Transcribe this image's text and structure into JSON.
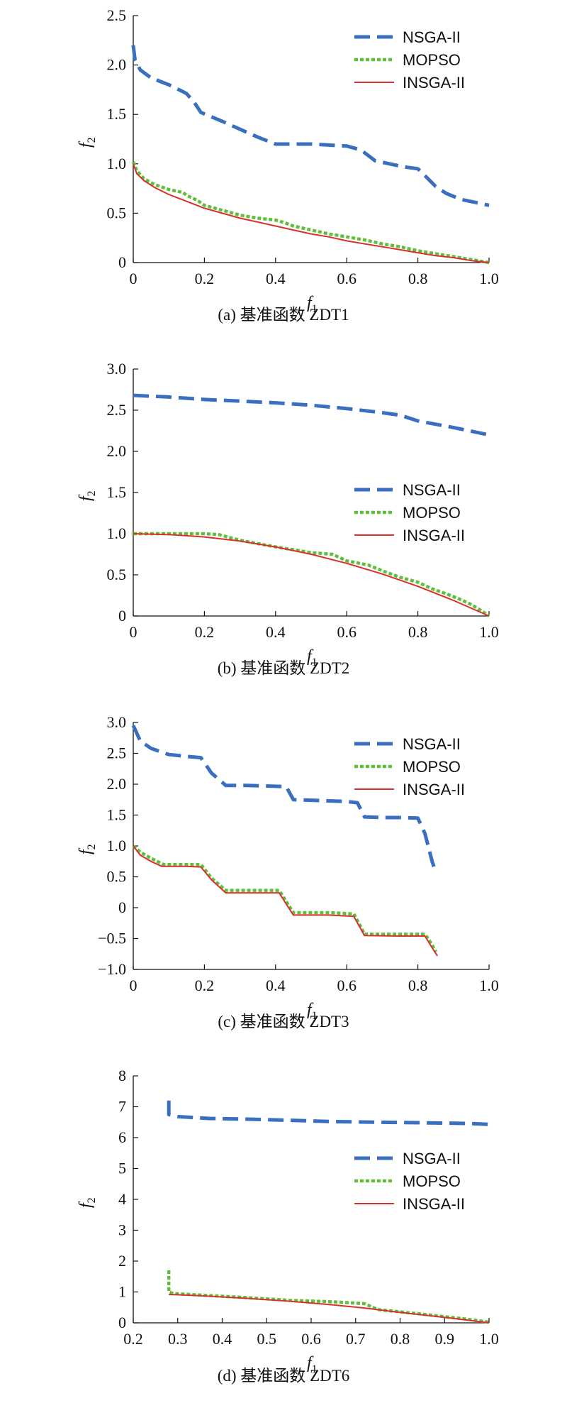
{
  "chart_data": [
    {
      "type": "line",
      "caption": "(a) 基准函数 ZDT1",
      "xlabel": "f1",
      "ylabel": "f2",
      "xlim": [
        0,
        1
      ],
      "ylim": [
        0,
        2.5
      ],
      "xticks": [
        0,
        0.2,
        0.4,
        0.6,
        0.8,
        1.0
      ],
      "xtick_labels": [
        "0",
        "0.2",
        "0.4",
        "0.6",
        "0.8",
        "1.0"
      ],
      "yticks": [
        0,
        0.5,
        1.0,
        1.5,
        2.0,
        2.5
      ],
      "ytick_labels": [
        "0",
        "0.5",
        "1.0",
        "1.5",
        "2.0",
        "2.5"
      ],
      "legend": "upper-right",
      "series": [
        {
          "name": "NSGA-II",
          "x": [
            0,
            0.005,
            0.02,
            0.05,
            0.1,
            0.14,
            0.15,
            0.17,
            0.19,
            0.25,
            0.3,
            0.35,
            0.4,
            0.45,
            0.5,
            0.55,
            0.6,
            0.64,
            0.68,
            0.72,
            0.76,
            0.8,
            0.82,
            0.85,
            0.88,
            0.92,
            0.96,
            1.0
          ],
          "y": [
            2.2,
            2.05,
            1.95,
            1.87,
            1.8,
            1.73,
            1.71,
            1.63,
            1.52,
            1.43,
            1.35,
            1.27,
            1.2,
            1.2,
            1.2,
            1.19,
            1.18,
            1.14,
            1.03,
            1.0,
            0.97,
            0.95,
            0.88,
            0.77,
            0.7,
            0.64,
            0.61,
            0.58
          ]
        },
        {
          "name": "MOPSO",
          "x": [
            0,
            0.01,
            0.03,
            0.06,
            0.1,
            0.14,
            0.15,
            0.18,
            0.2,
            0.26,
            0.3,
            0.35,
            0.4,
            0.42,
            0.45,
            0.5,
            0.55,
            0.6,
            0.65,
            0.7,
            0.75,
            0.8,
            0.85,
            0.9,
            0.95,
            1.0
          ],
          "y": [
            1.02,
            0.93,
            0.85,
            0.79,
            0.74,
            0.71,
            0.68,
            0.63,
            0.58,
            0.52,
            0.48,
            0.45,
            0.43,
            0.41,
            0.37,
            0.33,
            0.29,
            0.26,
            0.23,
            0.19,
            0.16,
            0.12,
            0.09,
            0.06,
            0.03,
            0.0
          ]
        },
        {
          "name": "INSGA-II",
          "x": [
            0,
            0.01,
            0.03,
            0.06,
            0.1,
            0.15,
            0.2,
            0.25,
            0.3,
            0.35,
            0.4,
            0.45,
            0.5,
            0.55,
            0.6,
            0.65,
            0.7,
            0.75,
            0.8,
            0.85,
            0.9,
            0.95,
            1.0
          ],
          "y": [
            1.0,
            0.9,
            0.83,
            0.76,
            0.69,
            0.62,
            0.55,
            0.5,
            0.45,
            0.41,
            0.37,
            0.33,
            0.29,
            0.26,
            0.22,
            0.19,
            0.16,
            0.13,
            0.1,
            0.07,
            0.05,
            0.02,
            0.0
          ]
        }
      ]
    },
    {
      "type": "line",
      "caption": "(b) 基准函数 ZDT2",
      "xlabel": "f1",
      "ylabel": "f2",
      "xlim": [
        0,
        1
      ],
      "ylim": [
        0,
        3.0
      ],
      "xticks": [
        0,
        0.2,
        0.4,
        0.6,
        0.8,
        1.0
      ],
      "xtick_labels": [
        "0",
        "0.2",
        "0.4",
        "0.6",
        "0.8",
        "1.0"
      ],
      "yticks": [
        0,
        0.5,
        1.0,
        1.5,
        2.0,
        2.5,
        3.0
      ],
      "ytick_labels": [
        "0",
        "0.5",
        "1.0",
        "1.5",
        "2.0",
        "2.5",
        "3.0"
      ],
      "legend": "right",
      "series": [
        {
          "name": "NSGA-II",
          "x": [
            0,
            0.1,
            0.2,
            0.3,
            0.4,
            0.5,
            0.6,
            0.7,
            0.75,
            0.8,
            0.9,
            1.0
          ],
          "y": [
            2.68,
            2.66,
            2.63,
            2.61,
            2.59,
            2.56,
            2.52,
            2.47,
            2.44,
            2.37,
            2.29,
            2.2
          ]
        },
        {
          "name": "MOPSO",
          "x": [
            0,
            0.1,
            0.2,
            0.24,
            0.3,
            0.4,
            0.5,
            0.56,
            0.6,
            0.66,
            0.7,
            0.75,
            0.8,
            0.84,
            0.88,
            0.92,
            0.95,
            0.98,
            1.0
          ],
          "y": [
            1.0,
            1.0,
            1.0,
            0.99,
            0.92,
            0.84,
            0.77,
            0.75,
            0.67,
            0.62,
            0.55,
            0.47,
            0.41,
            0.33,
            0.27,
            0.2,
            0.14,
            0.06,
            0.0
          ]
        },
        {
          "name": "INSGA-II",
          "x": [
            0,
            0.1,
            0.2,
            0.3,
            0.4,
            0.5,
            0.6,
            0.7,
            0.8,
            0.9,
            1.0
          ],
          "y": [
            1.0,
            0.99,
            0.96,
            0.91,
            0.84,
            0.75,
            0.64,
            0.51,
            0.36,
            0.19,
            0.0
          ]
        }
      ]
    },
    {
      "type": "line",
      "caption": "(c) 基准函数 ZDT3",
      "xlabel": "f1",
      "ylabel": "f2",
      "xlim": [
        0,
        1
      ],
      "ylim": [
        -1.0,
        3.0
      ],
      "xticks": [
        0,
        0.2,
        0.4,
        0.6,
        0.8,
        1.0
      ],
      "xtick_labels": [
        "0",
        "0.2",
        "0.4",
        "0.6",
        "0.8",
        "1.0"
      ],
      "yticks": [
        -1.0,
        -0.5,
        0,
        0.5,
        1.0,
        1.5,
        2.0,
        2.5,
        3.0
      ],
      "ytick_labels": [
        "−1.0",
        "−0.5",
        "0",
        "0.5",
        "1.0",
        "1.5",
        "2.0",
        "2.5",
        "3.0"
      ],
      "legend": "upper-right",
      "series": [
        {
          "name": "NSGA-II",
          "x": [
            0,
            0.02,
            0.05,
            0.1,
            0.15,
            0.19,
            0.22,
            0.26,
            0.32,
            0.38,
            0.43,
            0.45,
            0.5,
            0.55,
            0.6,
            0.63,
            0.65,
            0.7,
            0.75,
            0.8,
            0.82,
            0.84,
            0.85
          ],
          "y": [
            2.95,
            2.7,
            2.58,
            2.48,
            2.45,
            2.43,
            2.18,
            1.98,
            1.98,
            1.97,
            1.96,
            1.75,
            1.74,
            1.73,
            1.72,
            1.7,
            1.47,
            1.46,
            1.46,
            1.45,
            1.2,
            0.75,
            0.58
          ]
        },
        {
          "name": "MOPSO",
          "x": [
            0,
            0.02,
            0.05,
            0.085,
            0.15,
            0.19,
            0.22,
            0.26,
            0.35,
            0.41,
            0.45,
            0.55,
            0.62,
            0.65,
            0.75,
            0.82,
            0.84,
            0.85
          ],
          "y": [
            1.0,
            0.9,
            0.8,
            0.7,
            0.7,
            0.7,
            0.48,
            0.28,
            0.28,
            0.28,
            -0.08,
            -0.08,
            -0.1,
            -0.43,
            -0.43,
            -0.43,
            -0.6,
            -0.72
          ]
        },
        {
          "name": "INSGA-II",
          "x": [
            0,
            0.02,
            0.05,
            0.08,
            0.15,
            0.19,
            0.22,
            0.26,
            0.35,
            0.41,
            0.45,
            0.55,
            0.62,
            0.65,
            0.75,
            0.82,
            0.84,
            0.855
          ],
          "y": [
            1.0,
            0.85,
            0.75,
            0.67,
            0.67,
            0.66,
            0.45,
            0.24,
            0.24,
            0.24,
            -0.12,
            -0.12,
            -0.14,
            -0.45,
            -0.46,
            -0.46,
            -0.65,
            -0.78
          ]
        }
      ]
    },
    {
      "type": "line",
      "caption": "(d) 基准函数 ZDT6",
      "xlabel": "f1",
      "ylabel": "f2",
      "xlim": [
        0.2,
        1.0
      ],
      "ylim": [
        0,
        8
      ],
      "xticks": [
        0.2,
        0.3,
        0.4,
        0.5,
        0.6,
        0.7,
        0.8,
        0.9,
        1.0
      ],
      "xtick_labels": [
        "0.2",
        "0.3",
        "0.4",
        "0.5",
        "0.6",
        "0.7",
        "0.8",
        "0.9",
        "1.0"
      ],
      "yticks": [
        0,
        1,
        2,
        3,
        4,
        5,
        6,
        7,
        8
      ],
      "ytick_labels": [
        "0",
        "1",
        "2",
        "3",
        "4",
        "5",
        "6",
        "7",
        "8"
      ],
      "legend": "right",
      "series": [
        {
          "name": "NSGA-II",
          "x": [
            0.28,
            0.28,
            0.3,
            0.37,
            0.45,
            0.55,
            0.65,
            0.75,
            0.85,
            0.95,
            1.0
          ],
          "y": [
            7.2,
            6.75,
            6.68,
            6.62,
            6.6,
            6.56,
            6.52,
            6.5,
            6.48,
            6.46,
            6.43
          ]
        },
        {
          "name": "MOPSO",
          "x": [
            0.28,
            0.28,
            0.29,
            0.35,
            0.45,
            0.55,
            0.65,
            0.72,
            0.75,
            0.85,
            0.95,
            1.0
          ],
          "y": [
            1.7,
            1.0,
            0.95,
            0.9,
            0.82,
            0.73,
            0.68,
            0.62,
            0.43,
            0.28,
            0.12,
            0.02
          ]
        },
        {
          "name": "INSGA-II",
          "x": [
            0.28,
            0.35,
            0.45,
            0.55,
            0.65,
            0.72,
            0.8,
            0.9,
            1.0
          ],
          "y": [
            0.92,
            0.88,
            0.8,
            0.7,
            0.58,
            0.48,
            0.34,
            0.18,
            0.0
          ]
        }
      ]
    }
  ],
  "styles": {
    "NSGA-II": {
      "color": "#3a6fbf",
      "dash": "dashed"
    },
    "MOPSO": {
      "color": "#5fbf3a",
      "dash": "dotted"
    },
    "INSGA-II": {
      "color": "#d9302c",
      "dash": "solid"
    }
  }
}
